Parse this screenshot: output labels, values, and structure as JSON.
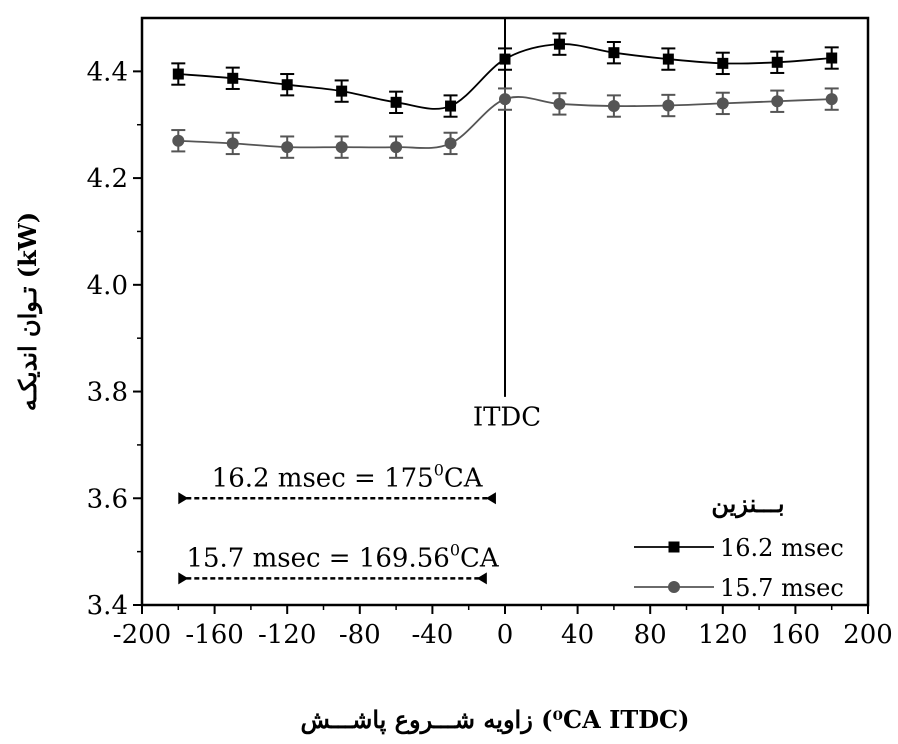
{
  "chart_data": {
    "type": "line",
    "xlabel": "زاویه شـــروع پاشـــش (⁰CA ITDC)",
    "ylabel": "تـوان اندیکـه (kW)",
    "xlim": [
      -200,
      200
    ],
    "ylim": [
      3.4,
      4.5
    ],
    "x_ticks": [
      -200,
      -160,
      -120,
      -80,
      -40,
      0,
      40,
      80,
      120,
      160,
      200
    ],
    "y_ticks": [
      3.4,
      3.6,
      3.8,
      4.0,
      4.2,
      4.4
    ],
    "x_tick_labels": [
      "-200",
      "-160",
      "-120",
      "-80",
      "-40",
      "0",
      "40",
      "80",
      "120",
      "160",
      "200"
    ],
    "y_tick_labels": [
      "3.4",
      "3.6",
      "3.8",
      "4.0",
      "4.2",
      "4.4"
    ],
    "grid": false,
    "legend": {
      "title": "بـــنزین",
      "position": "bottom-right"
    },
    "x": [
      -180,
      -150,
      -120,
      -90,
      -60,
      -30,
      0,
      30,
      60,
      90,
      120,
      150,
      180
    ],
    "series": [
      {
        "name": "16.2 msec",
        "marker": "square",
        "color": "#000000",
        "values": [
          4.395,
          4.387,
          4.375,
          4.363,
          4.342,
          4.335,
          4.423,
          4.451,
          4.435,
          4.423,
          4.415,
          4.417,
          4.425
        ],
        "error": 0.02
      },
      {
        "name": "15.7 msec",
        "marker": "circle",
        "color": "#555555",
        "values": [
          4.27,
          4.265,
          4.258,
          4.258,
          4.258,
          4.265,
          4.348,
          4.339,
          4.335,
          4.336,
          4.34,
          4.344,
          4.348
        ],
        "error": 0.02
      }
    ],
    "annotations": {
      "itdc_label": "ITDC",
      "itdc_x": 0,
      "range1": {
        "label": "16.2 msec = 175",
        "sup": "0",
        "suffix": "CA",
        "x_start": -180,
        "x_end": -5,
        "y": 3.6
      },
      "range2": {
        "label": "15.7 msec = 169.56",
        "sup": "0",
        "suffix": "CA",
        "x_start": -180,
        "x_end": -10,
        "y": 3.45
      }
    }
  }
}
